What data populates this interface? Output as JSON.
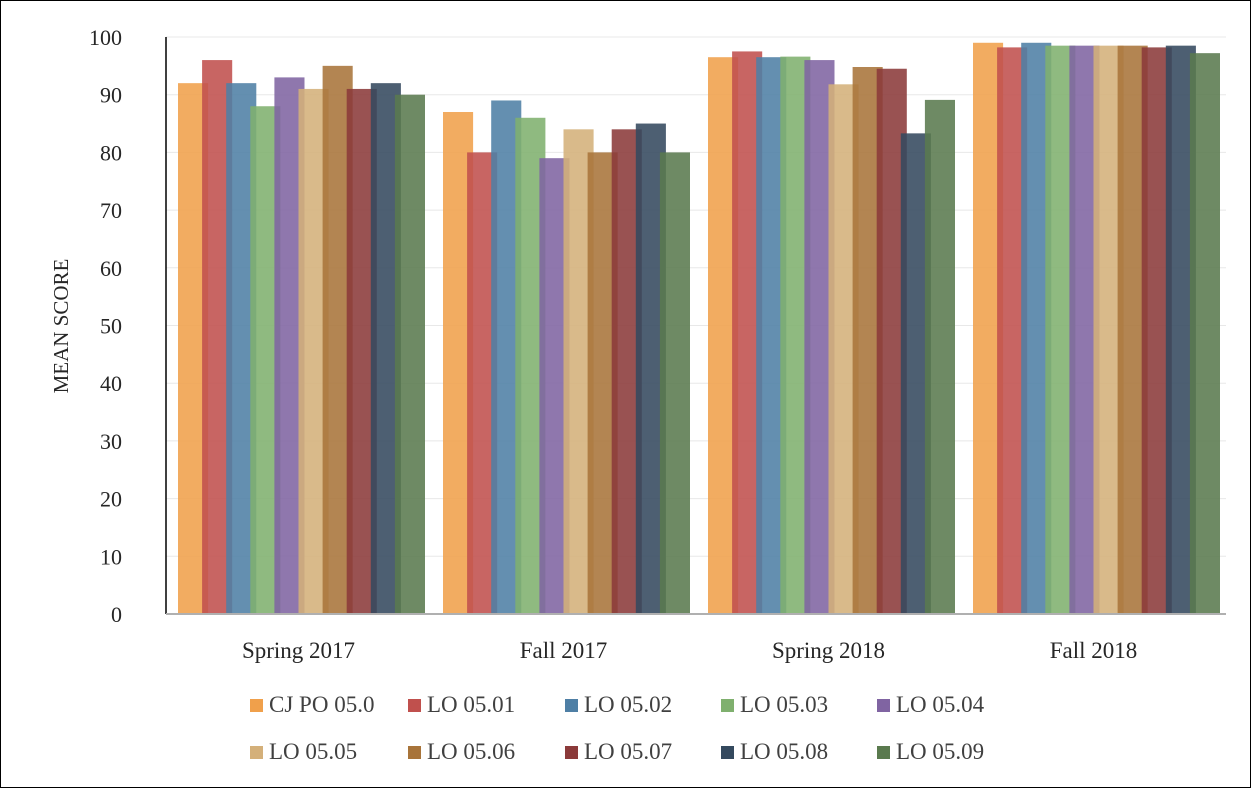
{
  "chart_data": {
    "type": "bar",
    "title": "",
    "xlabel": "",
    "ylabel": "MEAN SCORE",
    "ylim": [
      0,
      100
    ],
    "yticks": [
      0,
      10,
      20,
      30,
      40,
      50,
      60,
      70,
      80,
      90,
      100
    ],
    "grid": true,
    "legend_position": "bottom",
    "categories": [
      "Spring 2017",
      "Fall 2017",
      "Spring 2018",
      "Fall 2018"
    ],
    "series": [
      {
        "name": "CJ PO 05.0",
        "color": "#F0A04B",
        "values": [
          92,
          87,
          96.5,
          99
        ]
      },
      {
        "name": "LO 05.01",
        "color": "#C0504D",
        "values": [
          96,
          80,
          97.5,
          98.2
        ]
      },
      {
        "name": "LO 05.02",
        "color": "#4E7FA5",
        "values": [
          92,
          89,
          96.5,
          99
        ]
      },
      {
        "name": "LO 05.03",
        "color": "#7FB06E",
        "values": [
          88,
          86,
          96.6,
          98.5
        ]
      },
      {
        "name": "LO 05.04",
        "color": "#8064A2",
        "values": [
          93,
          79,
          96,
          98.5
        ]
      },
      {
        "name": "LO 05.05",
        "color": "#D4B07A",
        "values": [
          91,
          84,
          91.8,
          98.5
        ]
      },
      {
        "name": "LO 05.06",
        "color": "#A8743A",
        "values": [
          95,
          80,
          94.8,
          98.5
        ]
      },
      {
        "name": "LO 05.07",
        "color": "#8B3A3A",
        "values": [
          91,
          84,
          94.5,
          98.2
        ]
      },
      {
        "name": "LO 05.08",
        "color": "#34495E",
        "values": [
          92,
          85,
          83.3,
          98.5
        ]
      },
      {
        "name": "LO 05.09",
        "color": "#5A7A4E",
        "values": [
          90,
          80,
          89.1,
          97.2
        ]
      }
    ]
  }
}
